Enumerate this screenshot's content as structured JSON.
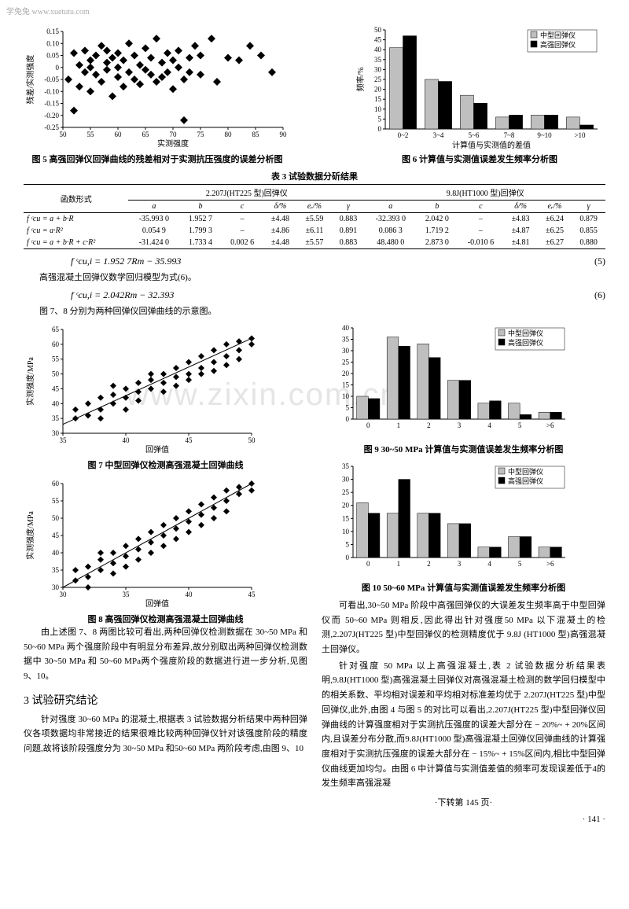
{
  "watermark_top": "学兔兔 www.xuetutu.com",
  "watermark_center": "www.zixin.com.cn",
  "fig5": {
    "type": "scatter",
    "caption": "图 5  高强回弹仪回弹曲线的残差相对于实测抗压强度的误差分析图",
    "xlabel": "实测强度",
    "ylabel": "残差/实测强度",
    "xlim": [
      50,
      90
    ],
    "xtick_step": 5,
    "ylim": [
      -0.25,
      0.15
    ],
    "ytick_step": 0.05,
    "marker": "diamond",
    "marker_size": 5,
    "color": "#000000",
    "points": [
      [
        51,
        -0.05
      ],
      [
        52,
        0.06
      ],
      [
        52,
        -0.18
      ],
      [
        53,
        0.01
      ],
      [
        53,
        -0.08
      ],
      [
        54,
        0.07
      ],
      [
        54,
        -0.02
      ],
      [
        55,
        0.03
      ],
      [
        55,
        -0.1
      ],
      [
        55,
        0.0
      ],
      [
        56,
        0.05
      ],
      [
        56,
        -0.03
      ],
      [
        57,
        0.09
      ],
      [
        57,
        -0.06
      ],
      [
        58,
        0.02
      ],
      [
        58,
        -0.01
      ],
      [
        58,
        0.07
      ],
      [
        59,
        -0.12
      ],
      [
        59,
        0.04
      ],
      [
        60,
        -0.04
      ],
      [
        60,
        0.06
      ],
      [
        60,
        0.0
      ],
      [
        61,
        -0.08
      ],
      [
        61,
        0.03
      ],
      [
        62,
        0.1
      ],
      [
        62,
        -0.02
      ],
      [
        63,
        -0.05
      ],
      [
        63,
        0.05
      ],
      [
        64,
        0.01
      ],
      [
        64,
        -0.07
      ],
      [
        65,
        0.08
      ],
      [
        65,
        -0.01
      ],
      [
        66,
        -0.03
      ],
      [
        66,
        0.04
      ],
      [
        67,
        0.12
      ],
      [
        67,
        -0.06
      ],
      [
        68,
        0.02
      ],
      [
        68,
        -0.04
      ],
      [
        69,
        0.06
      ],
      [
        69,
        -0.02
      ],
      [
        70,
        -0.09
      ],
      [
        70,
        0.03
      ],
      [
        71,
        0.0
      ],
      [
        71,
        0.07
      ],
      [
        72,
        -0.22
      ],
      [
        72,
        -0.05
      ],
      [
        73,
        0.04
      ],
      [
        73,
        -0.02
      ],
      [
        74,
        0.09
      ],
      [
        75,
        -0.03
      ],
      [
        75,
        0.05
      ],
      [
        77,
        0.12
      ],
      [
        78,
        -0.06
      ],
      [
        80,
        0.04
      ],
      [
        82,
        0.03
      ],
      [
        84,
        0.09
      ],
      [
        86,
        0.05
      ],
      [
        88,
        -0.02
      ]
    ]
  },
  "fig6": {
    "type": "bar",
    "caption": "图 6  计算值与实测值误差发生频率分析图",
    "xlabel": "计算值与实测值的差值",
    "ylabel": "频率/%",
    "categories": [
      "0~2",
      "3~4",
      "5~6",
      "7~8",
      "9~10",
      ">10"
    ],
    "series": [
      {
        "label": "中型回弹仪",
        "color": "#bfbfbf",
        "values": [
          41,
          25,
          17,
          6,
          7,
          6
        ]
      },
      {
        "label": "高强回弹仪",
        "color": "#000000",
        "values": [
          47,
          24,
          13,
          7,
          7,
          2
        ]
      }
    ],
    "ylim": [
      0,
      50
    ],
    "ytick_step": 5,
    "bar_width": 0.38
  },
  "table3": {
    "caption": "表 3  试验数据分斫结果",
    "group1_label": "2.207J(HT225 型)回弹仪",
    "group2_label": "9.8J(HT1000 型)回弹仪",
    "rowhdr": "函数形式",
    "cols": [
      "a",
      "b",
      "c",
      "δ/%",
      "eᵣ/%",
      "γ"
    ],
    "rows": [
      {
        "f": "f ᶜcu = a + b·R",
        "g1": [
          "-35.993 0",
          "1.952 7",
          "–",
          "±4.48",
          "±5.59",
          "0.883"
        ],
        "g2": [
          "-32.393 0",
          "2.042 0",
          "–",
          "±4.83",
          "±6.24",
          "0.879"
        ]
      },
      {
        "f": "f ᶜcu = a·R²",
        "g1": [
          "0.054 9",
          "1.799 3",
          "–",
          "±4.86",
          "±6.11",
          "0.891"
        ],
        "g2": [
          "0.086 3",
          "1.719 2",
          "–",
          "±4.87",
          "±6.25",
          "0.855"
        ]
      },
      {
        "f": "f ᶜcu = a + b·R + c·R²",
        "g1": [
          "-31.424 0",
          "1.733 4",
          "0.002 6",
          "±4.48",
          "±5.57",
          "0.883"
        ],
        "g2": [
          "48.480 0",
          "2.873 0",
          "-0.010 6",
          "±4.81",
          "±6.27",
          "0.880"
        ]
      }
    ]
  },
  "eq5": {
    "text": "f ᶜcu,i = 1.952 7Rm − 35.993",
    "num": "(5)"
  },
  "eq5_note": "高强混凝土回弹仪数学回归模型为式(6)。",
  "eq6": {
    "text": "f ᶜcu,i = 2.042Rm − 32.393",
    "num": "(6)"
  },
  "eq_after": "图 7、8 分别为两种回弹仪回弹曲线的示意图。",
  "fig7": {
    "type": "scatter-line",
    "caption": "图 7  中型回弹仪检测高强混凝土回弹曲线",
    "xlabel": "回弹值",
    "ylabel": "实测强度/MPa",
    "xlim": [
      35,
      50
    ],
    "xtick_step": 5,
    "ylim": [
      30,
      65
    ],
    "ytick_step": 5,
    "color": "#000000",
    "marker": "diamond",
    "marker_size": 4,
    "line_from": [
      35,
      33
    ],
    "line_to": [
      50,
      62
    ],
    "points": [
      [
        36,
        35
      ],
      [
        36,
        38
      ],
      [
        37,
        36
      ],
      [
        37,
        40
      ],
      [
        38,
        38
      ],
      [
        38,
        42
      ],
      [
        38,
        35
      ],
      [
        39,
        40
      ],
      [
        39,
        43
      ],
      [
        39,
        46
      ],
      [
        40,
        42
      ],
      [
        40,
        38
      ],
      [
        40,
        45
      ],
      [
        41,
        44
      ],
      [
        41,
        47
      ],
      [
        41,
        41
      ],
      [
        42,
        45
      ],
      [
        42,
        48
      ],
      [
        42,
        50
      ],
      [
        43,
        47
      ],
      [
        43,
        50
      ],
      [
        43,
        44
      ],
      [
        44,
        49
      ],
      [
        44,
        52
      ],
      [
        44,
        46
      ],
      [
        45,
        50
      ],
      [
        45,
        54
      ],
      [
        45,
        48
      ],
      [
        46,
        52
      ],
      [
        46,
        56
      ],
      [
        46,
        50
      ],
      [
        47,
        54
      ],
      [
        47,
        58
      ],
      [
        47,
        51
      ],
      [
        48,
        56
      ],
      [
        48,
        60
      ],
      [
        48,
        53
      ],
      [
        49,
        58
      ],
      [
        49,
        61
      ],
      [
        49,
        55
      ],
      [
        50,
        60
      ],
      [
        50,
        62
      ]
    ]
  },
  "fig8": {
    "type": "scatter-line",
    "caption": "图 8  高强回弹仪检测高强混凝土回弹曲线",
    "xlabel": "回弹值",
    "ylabel": "实测强度/MPa",
    "xlim": [
      30,
      45
    ],
    "xtick_step": 5,
    "ylim": [
      30,
      60
    ],
    "ytick_step": 5,
    "color": "#000000",
    "marker": "diamond",
    "marker_size": 4,
    "line_from": [
      30,
      30
    ],
    "line_to": [
      45,
      60
    ],
    "points": [
      [
        31,
        32
      ],
      [
        31,
        35
      ],
      [
        32,
        33
      ],
      [
        32,
        36
      ],
      [
        32,
        30
      ],
      [
        33,
        35
      ],
      [
        33,
        38
      ],
      [
        33,
        40
      ],
      [
        34,
        37
      ],
      [
        34,
        40
      ],
      [
        34,
        34
      ],
      [
        35,
        39
      ],
      [
        35,
        42
      ],
      [
        35,
        36
      ],
      [
        36,
        41
      ],
      [
        36,
        44
      ],
      [
        36,
        38
      ],
      [
        37,
        43
      ],
      [
        37,
        46
      ],
      [
        37,
        40
      ],
      [
        38,
        45
      ],
      [
        38,
        48
      ],
      [
        38,
        42
      ],
      [
        39,
        47
      ],
      [
        39,
        50
      ],
      [
        39,
        44
      ],
      [
        40,
        49
      ],
      [
        40,
        52
      ],
      [
        40,
        46
      ],
      [
        41,
        51
      ],
      [
        41,
        54
      ],
      [
        41,
        48
      ],
      [
        42,
        53
      ],
      [
        42,
        56
      ],
      [
        42,
        50
      ],
      [
        43,
        55
      ],
      [
        43,
        58
      ],
      [
        43,
        52
      ],
      [
        44,
        57
      ],
      [
        44,
        59
      ],
      [
        45,
        58
      ],
      [
        45,
        60
      ]
    ]
  },
  "fig9": {
    "type": "bar",
    "caption": "图 9  30~50 MPa 计算值与实测值误差发生频率分析图",
    "categories": [
      "0",
      "1",
      "2",
      "3",
      "4",
      "5",
      ">6"
    ],
    "series": [
      {
        "label": "中型回弹仪",
        "color": "#bfbfbf",
        "values": [
          10,
          36,
          33,
          17,
          7,
          7,
          3
        ]
      },
      {
        "label": "高强回弹仪",
        "color": "#000000",
        "values": [
          9,
          32,
          27,
          17,
          8,
          2,
          3
        ]
      }
    ],
    "ylim": [
      0,
      40
    ],
    "ytick_step": 5,
    "bar_width": 0.38
  },
  "fig10": {
    "type": "bar",
    "caption": "图 10  50~60 MPa 计算值与实测值误差发生频率分析图",
    "categories": [
      "0",
      "1",
      "2",
      "3",
      "4",
      "5",
      ">6"
    ],
    "series": [
      {
        "label": "中型回弹仪",
        "color": "#bfbfbf",
        "values": [
          21,
          17,
          17,
          13,
          4,
          8,
          4
        ]
      },
      {
        "label": "高强回弹仪",
        "color": "#000000",
        "values": [
          17,
          30,
          17,
          13,
          4,
          8,
          4
        ]
      }
    ],
    "ylim": [
      0,
      35
    ],
    "ytick_step": 5,
    "bar_width": 0.38
  },
  "left_text": {
    "p1": "由上述图 7、8 两图比较可看出,两种回弹仪检测数据在 30~50 MPa 和 50~60 MPa 两个强度阶段中有明显分布差异,故分别取出两种回弹仪检测数据中 30~50 MPa 和 50~60 MPa两个强度阶段的数据进行进一步分析,见图 9、10。",
    "sec": "3  试验研究结论",
    "p2": "针对强度 30~60 MPa 的混凝土,根据表 3 试验数据分析结果中两种回弹仪各项数据均非常接近的结果很难比较两种回弹仪针对该强度阶段的精度问题,故将该阶段强度分为 30~50 MPa 和50~60 MPa 两阶段考虑,由图 9、10"
  },
  "right_text": {
    "p1": "可看出,30~50 MPa 阶段中高强回弹仪的大误差发生频率高于中型回弹仪而 50~60 MPa 则相反,因此得出针对强度50 MPa 以下混凝土的检测,2.207J(HT225 型)中型回弹仪的检测精度优于 9.8J (HT1000 型)高强混凝土回弹仪。",
    "p2": "针对强度 50 MPa 以上高强混凝土,表 2 试验数据分析结果表明,9.8J(HT1000 型)高强混凝土回弹仪对高强混凝土检测的数学回归模型中的相关系数、平均相对误差和平均相对标准差均优于 2.207J(HT225 型)中型回弹仪,此外,由图 4 与图 5 的对比可以看出,2.207J(HT225 型)中型回弹仪回弹曲线的计算强度相对于实测抗压强度的误差大部分在 − 20%~ + 20%区间内,且误差分布分散,而9.8J(HT1000 型)高强混凝土回弹仪回弹曲线的计算强度相对于实测抗压强度的误差大部分在 − 15%~ + 15%区间内,相比中型回弹仪曲线更加均匀。由图 6 中计算值与实测值差值的频率可发现误差低于4的发生频率高强混凝"
  },
  "continue_note": "·下转第 145 页·",
  "page_number": "· 141 ·"
}
